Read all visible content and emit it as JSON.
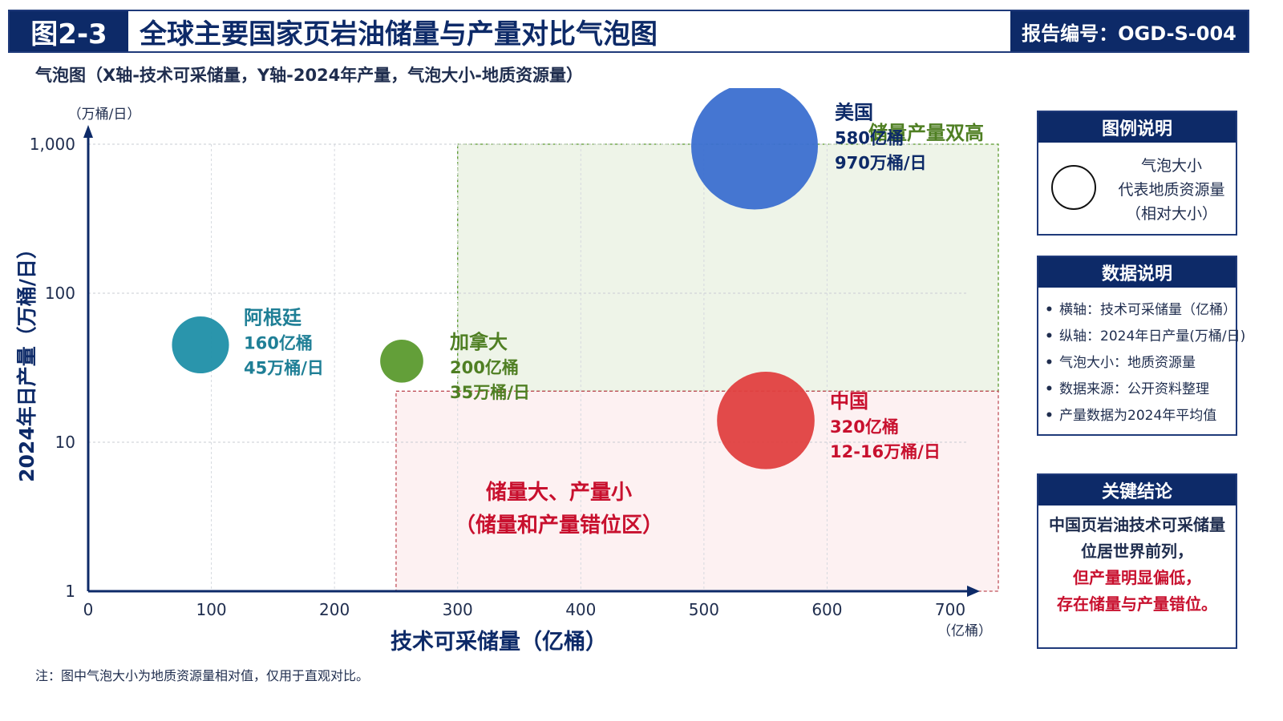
{
  "header": {
    "figure_no": "图2-3",
    "title": "全球主要国家页岩油储量与产量对比气泡图",
    "report_no": "报告编号：OGD-S-004"
  },
  "subtitle": "气泡图（X轴-技术可采储量，Y轴-2024年产量，气泡大小-地质资源量）",
  "chart_data": {
    "type": "scatter",
    "xlabel": "技术可采储量（亿桶）",
    "x_unit": "（亿桶）",
    "ylabel": "2024年日产量（万桶/日）",
    "y_unit": "（万桶/日）",
    "xlim": [
      0,
      700
    ],
    "ylim": [
      1,
      1000
    ],
    "y_scale": "log",
    "x_ticks": [
      0,
      100,
      200,
      300,
      400,
      500,
      600,
      700
    ],
    "x_tick_labels": [
      "0",
      "100",
      "200",
      "300",
      "400",
      "500",
      "600",
      "700"
    ],
    "y_ticks": [
      1,
      10,
      100,
      1000
    ],
    "y_tick_labels": [
      "1",
      "10",
      "100",
      "1,000"
    ],
    "grid": true,
    "series": [
      {
        "name": "美国",
        "x": 580,
        "y": 970,
        "size": 1.0,
        "color": "#3b6fd0",
        "label_color": "#0d2a68",
        "label_lines": [
          "美国",
          "580亿桶",
          "970万桶/日"
        ]
      },
      {
        "name": "阿根廷",
        "x": 160,
        "y": 45,
        "size": 0.45,
        "color": "#1f8fa8",
        "label_color": "#1f7f96",
        "label_lines": [
          "阿根廷",
          "160亿桶",
          "45万桶/日"
        ]
      },
      {
        "name": "加拿大",
        "x": 200,
        "y": 35,
        "size": 0.34,
        "color": "#5b9a2e",
        "label_color": "#4f7f23",
        "label_lines": [
          "加拿大",
          "200亿桶",
          "35万桶/日"
        ]
      },
      {
        "name": "中国",
        "x": 320,
        "y": 14,
        "size": 0.77,
        "color": "#e04040",
        "label_color": "#c8102e",
        "label_lines": [
          "中国",
          "320亿桶",
          "12-16万桶/日"
        ]
      }
    ],
    "regions": [
      {
        "label": "储量产量双高",
        "x_range": [
          300,
          700
        ],
        "y_range": [
          22,
          1000
        ],
        "fill": "#eef4e8",
        "stroke": "#5b9a2e",
        "text_color": "#4f7f23"
      },
      {
        "label": "储量大、产量小",
        "label2": "（储量和产量错位区）",
        "x_range": [
          250,
          700
        ],
        "y_range": [
          1,
          22
        ],
        "fill": "#fdf1f2",
        "stroke": "#c0505a",
        "text_color": "#c8102e"
      }
    ]
  },
  "legend_box": {
    "title": "图例说明",
    "lines": [
      "气泡大小",
      "代表地质资源量",
      "（相对大小）"
    ]
  },
  "data_box": {
    "title": "数据说明",
    "items": [
      "横轴：技术可采储量（亿桶）",
      "纵轴：2024年日产量(万桶/日)",
      "气泡大小：地质资源量",
      "数据来源：公开资料整理",
      "产量数据为2024年平均值"
    ]
  },
  "conclusion_box": {
    "title": "关键结论",
    "lines_normal": [
      "中国页岩油技术可采储量",
      "位居世界前列，"
    ],
    "lines_highlight": [
      "但产量明显偏低，",
      "存在储量与产量错位。"
    ]
  },
  "note": "注：图中气泡大小为地质资源量相对值，仅用于直观对比。"
}
